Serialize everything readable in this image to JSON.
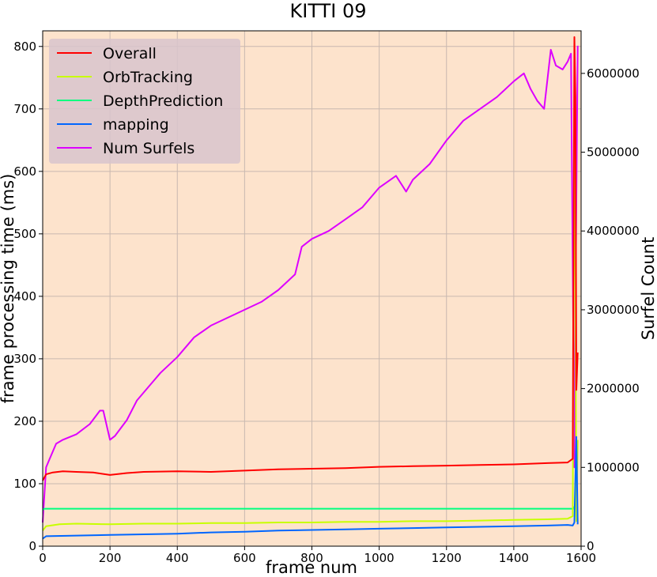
{
  "chart_data": {
    "type": "line",
    "title": "KITTI 09",
    "xlabel": "frame num",
    "ylabel": "frame processing time (ms)",
    "y2label": "Surfel Count",
    "xlim": [
      0,
      1600
    ],
    "ylim": [
      0,
      825
    ],
    "y2lim": [
      0,
      6540000
    ],
    "xticks": [
      0,
      200,
      400,
      600,
      800,
      1000,
      1200,
      1400,
      1600
    ],
    "yticks": [
      0,
      100,
      200,
      300,
      400,
      500,
      600,
      700,
      800
    ],
    "y2ticks": [
      0,
      1000000,
      2000000,
      3000000,
      4000000,
      5000000,
      6000000
    ],
    "grid": true,
    "legend_position": "top-left",
    "background_color": "#fde3cc",
    "series": [
      {
        "name": "Overall",
        "axis": "left",
        "color": "#ff0000",
        "x": [
          0,
          10,
          30,
          60,
          100,
          150,
          200,
          250,
          300,
          400,
          500,
          600,
          700,
          800,
          900,
          1000,
          1100,
          1200,
          1300,
          1400,
          1500,
          1560,
          1575,
          1580,
          1583,
          1586,
          1590
        ],
        "y": [
          105,
          115,
          118,
          120,
          119,
          118,
          114,
          117,
          119,
          120,
          119,
          121,
          123,
          124,
          125,
          127,
          128,
          129,
          130,
          131,
          133,
          134,
          140,
          815,
          720,
          250,
          310
        ]
      },
      {
        "name": "OrbTracking",
        "axis": "left",
        "color": "#c8ff00",
        "x": [
          0,
          10,
          50,
          100,
          200,
          300,
          400,
          500,
          600,
          700,
          800,
          900,
          1000,
          1100,
          1200,
          1300,
          1400,
          1500,
          1560,
          1575,
          1580,
          1583,
          1586,
          1590
        ],
        "y": [
          25,
          32,
          35,
          36,
          35,
          36,
          36,
          37,
          37,
          38,
          38,
          39,
          39,
          40,
          40,
          41,
          42,
          43,
          44,
          48,
          720,
          420,
          40,
          170
        ]
      },
      {
        "name": "DepthPrediction",
        "axis": "left",
        "color": "#00ff7f",
        "x": [
          0,
          5,
          10,
          100,
          200,
          300,
          400,
          500,
          600,
          700,
          800,
          900,
          1000,
          1100,
          1200,
          1300,
          1400,
          1500,
          1570,
          1578,
          1581,
          1584,
          1590
        ],
        "y": [
          58,
          60,
          60,
          60,
          60,
          60,
          60,
          60,
          60,
          60,
          60,
          60,
          60,
          60,
          60,
          60,
          60,
          60,
          60,
          60,
          64,
          65,
          62
        ]
      },
      {
        "name": "mapping",
        "axis": "left",
        "color": "#0066ff",
        "x": [
          0,
          10,
          100,
          200,
          300,
          400,
          500,
          600,
          700,
          800,
          900,
          1000,
          1100,
          1200,
          1300,
          1400,
          1500,
          1560,
          1575,
          1580,
          1583,
          1586,
          1590
        ],
        "y": [
          12,
          16,
          17,
          18,
          19,
          20,
          22,
          23,
          25,
          26,
          27,
          28,
          29,
          30,
          31,
          32,
          33,
          34,
          33,
          38,
          110,
          175,
          35
        ]
      },
      {
        "name": "Num Surfels",
        "axis": "right",
        "color": "#dd00ff",
        "x": [
          0,
          10,
          20,
          40,
          60,
          100,
          140,
          170,
          180,
          200,
          215,
          250,
          280,
          300,
          330,
          350,
          400,
          450,
          500,
          550,
          600,
          650,
          700,
          750,
          770,
          800,
          850,
          900,
          950,
          1000,
          1050,
          1080,
          1100,
          1150,
          1200,
          1250,
          1300,
          1350,
          1400,
          1430,
          1450,
          1470,
          1490,
          1510,
          1525,
          1545,
          1560,
          1570,
          1580,
          1583,
          1590
        ],
        "y": [
          300000,
          1000000,
          1100000,
          1300000,
          1350000,
          1420000,
          1550000,
          1720000,
          1720000,
          1350000,
          1400000,
          1600000,
          1850000,
          1950000,
          2100000,
          2200000,
          2400000,
          2650000,
          2800000,
          2900000,
          3000000,
          3100000,
          3250000,
          3450000,
          3800000,
          3900000,
          4000000,
          4150000,
          4300000,
          4550000,
          4700000,
          4500000,
          4650000,
          4850000,
          5150000,
          5400000,
          5550000,
          5700000,
          5900000,
          6000000,
          5800000,
          5650000,
          5550000,
          6300000,
          6100000,
          6050000,
          6150000,
          6250000,
          1000000,
          3000000,
          6350000
        ]
      }
    ]
  }
}
